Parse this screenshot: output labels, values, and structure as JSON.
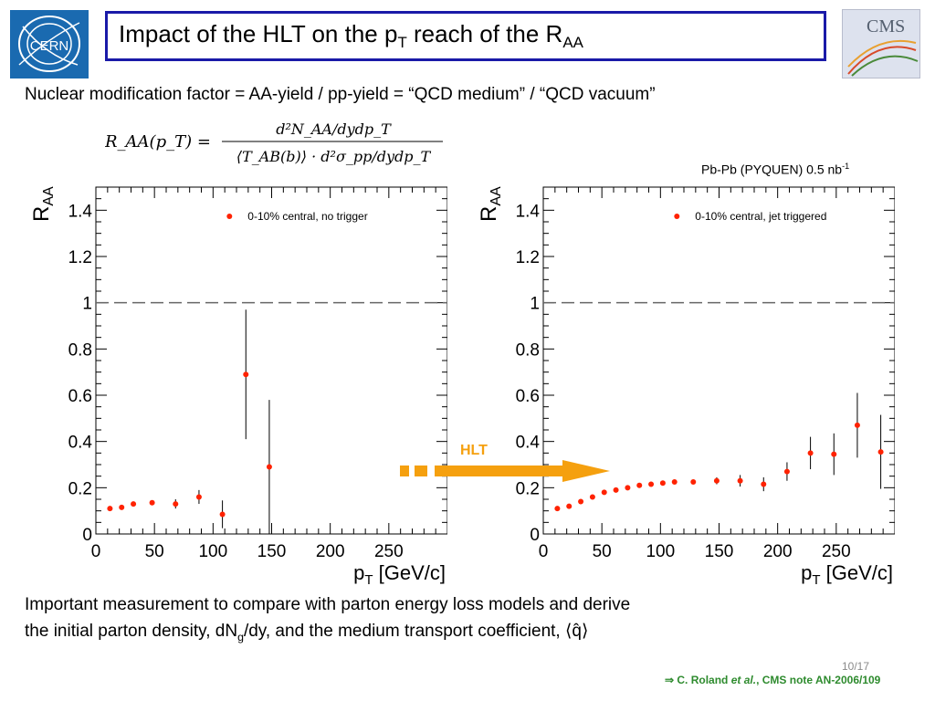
{
  "title": {
    "main": "Impact of the HLT on the p",
    "sub1": "T",
    "mid": " reach of the R",
    "sub2": "AA"
  },
  "subtitle": "Nuclear modification factor = AA-yield / pp-yield = “QCD medium” / “QCD vacuum”",
  "formula": {
    "lhs": "R_AA(p_T) =",
    "numerator": "d²N_AA/dydp_T",
    "denominator": "⟨T_AB(b)⟩ · d²σ_pp/dydp_T"
  },
  "dataset_label": {
    "text": "Pb-Pb (PYQUEN) 0.5 nb",
    "sup": "-1"
  },
  "hlt_label": "HLT",
  "colors": {
    "marker": "#ff2200",
    "arrow": "#f5a00f",
    "title_border": "#1a1aa8",
    "hlt_text": "#f5a00f",
    "citation": "#2e8b2e"
  },
  "chart_data": [
    {
      "type": "scatter",
      "ylabel": "R",
      "ylabel_sub": "AA",
      "xlabel": "p",
      "xlabel_sub": "T",
      "xlabel_unit": " [GeV/c]",
      "xlim": [
        0,
        300
      ],
      "ylim": [
        0,
        1.5
      ],
      "xticks": [
        0,
        50,
        100,
        150,
        200,
        250
      ],
      "yticks": [
        0,
        0.2,
        0.4,
        0.6,
        0.8,
        1,
        1.2,
        1.4
      ],
      "ytick_labels": [
        "0",
        "0.2",
        "0.4",
        "0.6",
        "0.8",
        "1",
        "1.2",
        "1.4"
      ],
      "reference_line": 1,
      "legend": "0-10% central, no trigger",
      "legend_position": "top-right",
      "x": [
        12,
        22,
        32,
        48,
        68,
        88,
        108,
        128,
        148
      ],
      "y": [
        0.11,
        0.115,
        0.13,
        0.135,
        0.13,
        0.16,
        0.085,
        0.69,
        0.29
      ],
      "yerr": [
        0.005,
        0.005,
        0.01,
        0.01,
        0.02,
        0.03,
        0.06,
        0.28,
        0.29
      ]
    },
    {
      "type": "scatter",
      "ylabel": "R",
      "ylabel_sub": "AA",
      "xlabel": "p",
      "xlabel_sub": "T",
      "xlabel_unit": " [GeV/c]",
      "xlim": [
        0,
        300
      ],
      "ylim": [
        0,
        1.5
      ],
      "xticks": [
        0,
        50,
        100,
        150,
        200,
        250
      ],
      "yticks": [
        0,
        0.2,
        0.4,
        0.6,
        0.8,
        1,
        1.2,
        1.4
      ],
      "ytick_labels": [
        "0",
        "0.2",
        "0.4",
        "0.6",
        "0.8",
        "1",
        "1.2",
        "1.4"
      ],
      "reference_line": 1,
      "legend": "0-10% central, jet triggered",
      "legend_position": "top-right",
      "x": [
        12,
        22,
        32,
        42,
        52,
        62,
        72,
        82,
        92,
        102,
        112,
        128,
        148,
        168,
        188,
        208,
        228,
        248,
        268,
        288
      ],
      "y": [
        0.11,
        0.12,
        0.14,
        0.16,
        0.18,
        0.19,
        0.2,
        0.21,
        0.215,
        0.22,
        0.225,
        0.225,
        0.23,
        0.23,
        0.215,
        0.27,
        0.35,
        0.345,
        0.47,
        0.355
      ],
      "yerr": [
        0.005,
        0.005,
        0.005,
        0.005,
        0.005,
        0.005,
        0.005,
        0.005,
        0.005,
        0.005,
        0.005,
        0.008,
        0.015,
        0.025,
        0.03,
        0.04,
        0.07,
        0.09,
        0.14,
        0.16
      ]
    }
  ],
  "bottom_text": {
    "line1": "Important measurement to compare with parton energy loss models and derive",
    "line2_a": "the initial parton density, dN",
    "line2_sub": "g",
    "line2_b": "/dy, and the medium transport coefficient, ",
    "qhat": "⟨q̂⟩"
  },
  "page_num": "10/17",
  "citation": {
    "arrow": "⇒ ",
    "author": "C. Roland ",
    "etal": "et al.",
    "rest": ", CMS note AN-2006/109"
  },
  "logos": {
    "left": "CERN",
    "right": "CMS"
  }
}
